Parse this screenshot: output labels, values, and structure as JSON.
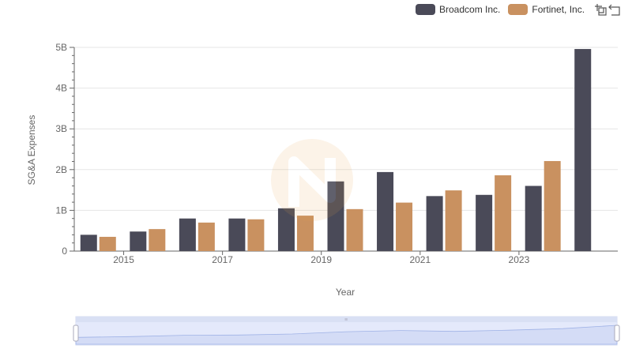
{
  "chart_data": {
    "type": "bar",
    "xlabel": "Year",
    "ylabel": "SG&A Expenses",
    "x": [
      2014,
      2015,
      2016,
      2017,
      2018,
      2019,
      2020,
      2021,
      2022,
      2023,
      2024
    ],
    "x_tick_labels": [
      "2015",
      "2017",
      "2019",
      "2021",
      "2023"
    ],
    "y_tick_labels": [
      "0",
      "1B",
      "2B",
      "3B",
      "4B",
      "5B"
    ],
    "ylim": [
      0,
      5000000000
    ],
    "grid": true,
    "legend_position": "top-right",
    "series": [
      {
        "name": "Broadcom Inc.",
        "color": "#4a4a58",
        "values": [
          400000000,
          480000000,
          800000000,
          800000000,
          1050000000,
          1710000000,
          1940000000,
          1350000000,
          1380000000,
          1600000000,
          4960000000
        ]
      },
      {
        "name": "Fortinet, Inc.",
        "color": "#c99160",
        "values": [
          350000000,
          540000000,
          700000000,
          780000000,
          870000000,
          1030000000,
          1190000000,
          1490000000,
          1860000000,
          2210000000,
          null
        ]
      }
    ]
  },
  "toolbar": {
    "zoom_icon": "zoom-select-icon",
    "restore_icon": "restore-icon"
  }
}
